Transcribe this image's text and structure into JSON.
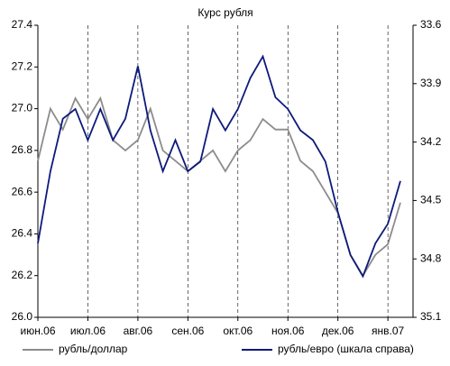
{
  "chart_data": {
    "type": "line",
    "title": "Курс рубля",
    "categories": [
      "июн.06",
      null,
      null,
      null,
      "июл.06",
      null,
      null,
      null,
      "авг.06",
      null,
      null,
      null,
      "сен.06",
      null,
      null,
      null,
      "окт.06",
      null,
      null,
      null,
      "ноя.06",
      null,
      null,
      null,
      "дек.06",
      null,
      null,
      null,
      "янв.07",
      null
    ],
    "series": [
      {
        "name": "рубль/доллар",
        "color": "#8c8c8c",
        "values": [
          26.75,
          27.0,
          26.9,
          27.05,
          26.95,
          27.05,
          26.85,
          26.8,
          26.85,
          27.0,
          26.8,
          26.75,
          26.7,
          26.75,
          26.8,
          26.7,
          26.8,
          26.85,
          26.95,
          26.9,
          26.9,
          26.75,
          26.7,
          26.6,
          26.5,
          26.3,
          26.2,
          26.3,
          26.35,
          26.55
        ]
      },
      {
        "name": "рубль/евро (шкала справа)",
        "color": "#0d1a7a",
        "axis": "y2",
        "values": [
          34.72,
          34.35,
          34.08,
          34.03,
          34.19,
          34.03,
          34.19,
          34.08,
          33.81,
          34.14,
          34.35,
          34.19,
          34.35,
          34.3,
          34.03,
          34.14,
          34.03,
          33.87,
          33.76,
          33.97,
          34.03,
          34.14,
          34.19,
          34.3,
          34.56,
          34.78,
          34.89,
          34.72,
          34.62,
          34.4
        ]
      }
    ],
    "ylim": [
      26.0,
      27.4
    ],
    "yticks": [
      {
        "value": 26.0,
        "label": "26.0"
      },
      26.2,
      26.4,
      26.6,
      26.8,
      {
        "value": 27.0,
        "label": "27.0"
      },
      27.2,
      27.4
    ],
    "y2lim": [
      35.1,
      33.6
    ],
    "y2ticks": [
      33.6,
      33.9,
      34.2,
      34.5,
      34.8,
      35.1
    ],
    "xgrid": true,
    "legend": "bottom"
  }
}
